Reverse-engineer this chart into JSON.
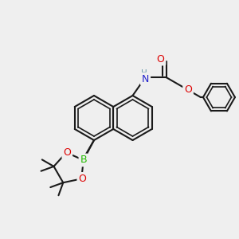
{
  "bg_color": "#efefef",
  "bond_color": "#1a1a1a",
  "bond_width": 1.5,
  "atom_colors": {
    "B": "#22bb00",
    "O": "#dd0000",
    "N": "#2222cc",
    "H": "#6699aa",
    "C": "#1a1a1a"
  },
  "font_size": 8.5,
  "fig_size": [
    3.0,
    3.0
  ],
  "dpi": 100
}
